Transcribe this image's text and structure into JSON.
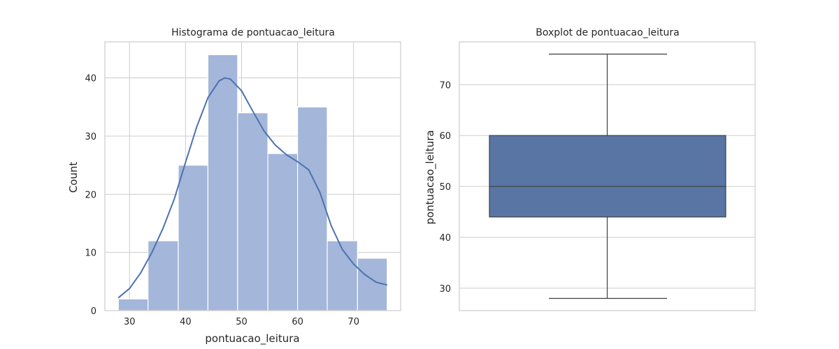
{
  "colors": {
    "hist_bar": "#a4b6d9",
    "kde_line": "#4c72b0",
    "box_fill": "#5975a4",
    "box_line": "#3f3f3f",
    "grid": "#cccccc"
  },
  "chart_data": [
    {
      "type": "histogram",
      "title": "Histograma de pontuacao_leitura",
      "xlabel": "pontuacao_leitura",
      "ylabel": "Count",
      "xlim": [
        25.6,
        78.4
      ],
      "ylim": [
        0,
        46.2
      ],
      "xticks": [
        30,
        40,
        50,
        60,
        70
      ],
      "yticks": [
        0,
        10,
        20,
        30,
        40
      ],
      "grid": true,
      "bins": [
        {
          "x0": 28.0,
          "x1": 33.3,
          "count": 2
        },
        {
          "x0": 33.3,
          "x1": 38.7,
          "count": 12
        },
        {
          "x0": 38.7,
          "x1": 44.0,
          "count": 25
        },
        {
          "x0": 44.0,
          "x1": 49.3,
          "count": 44
        },
        {
          "x0": 49.3,
          "x1": 54.7,
          "count": 34
        },
        {
          "x0": 54.7,
          "x1": 60.0,
          "count": 27
        },
        {
          "x0": 60.0,
          "x1": 65.3,
          "count": 35
        },
        {
          "x0": 65.3,
          "x1": 70.7,
          "count": 12
        },
        {
          "x0": 70.7,
          "x1": 76.0,
          "count": 9
        }
      ],
      "kde": {
        "x": [
          28,
          30,
          32,
          34,
          36,
          38,
          40,
          42,
          44,
          46,
          47,
          48,
          50,
          52,
          54,
          56,
          58,
          60,
          62,
          64,
          66,
          68,
          70,
          72,
          74,
          76
        ],
        "y": [
          2.2,
          3.8,
          6.5,
          10.0,
          14.2,
          19.2,
          25.5,
          31.6,
          36.6,
          39.5,
          40.0,
          39.8,
          37.8,
          34.3,
          30.9,
          28.5,
          26.8,
          25.6,
          24.2,
          20.3,
          14.6,
          10.5,
          8.0,
          6.2,
          4.9,
          4.4
        ]
      }
    },
    {
      "type": "boxplot",
      "title": "Boxplot de pontuacao_leitura",
      "ylabel": "pontuacao_leitura",
      "ylim": [
        25.6,
        78.4
      ],
      "yticks": [
        30,
        40,
        50,
        60,
        70
      ],
      "grid": true,
      "whisker_low": 28,
      "q1": 44,
      "median": 50,
      "q3": 60,
      "whisker_high": 76
    }
  ]
}
